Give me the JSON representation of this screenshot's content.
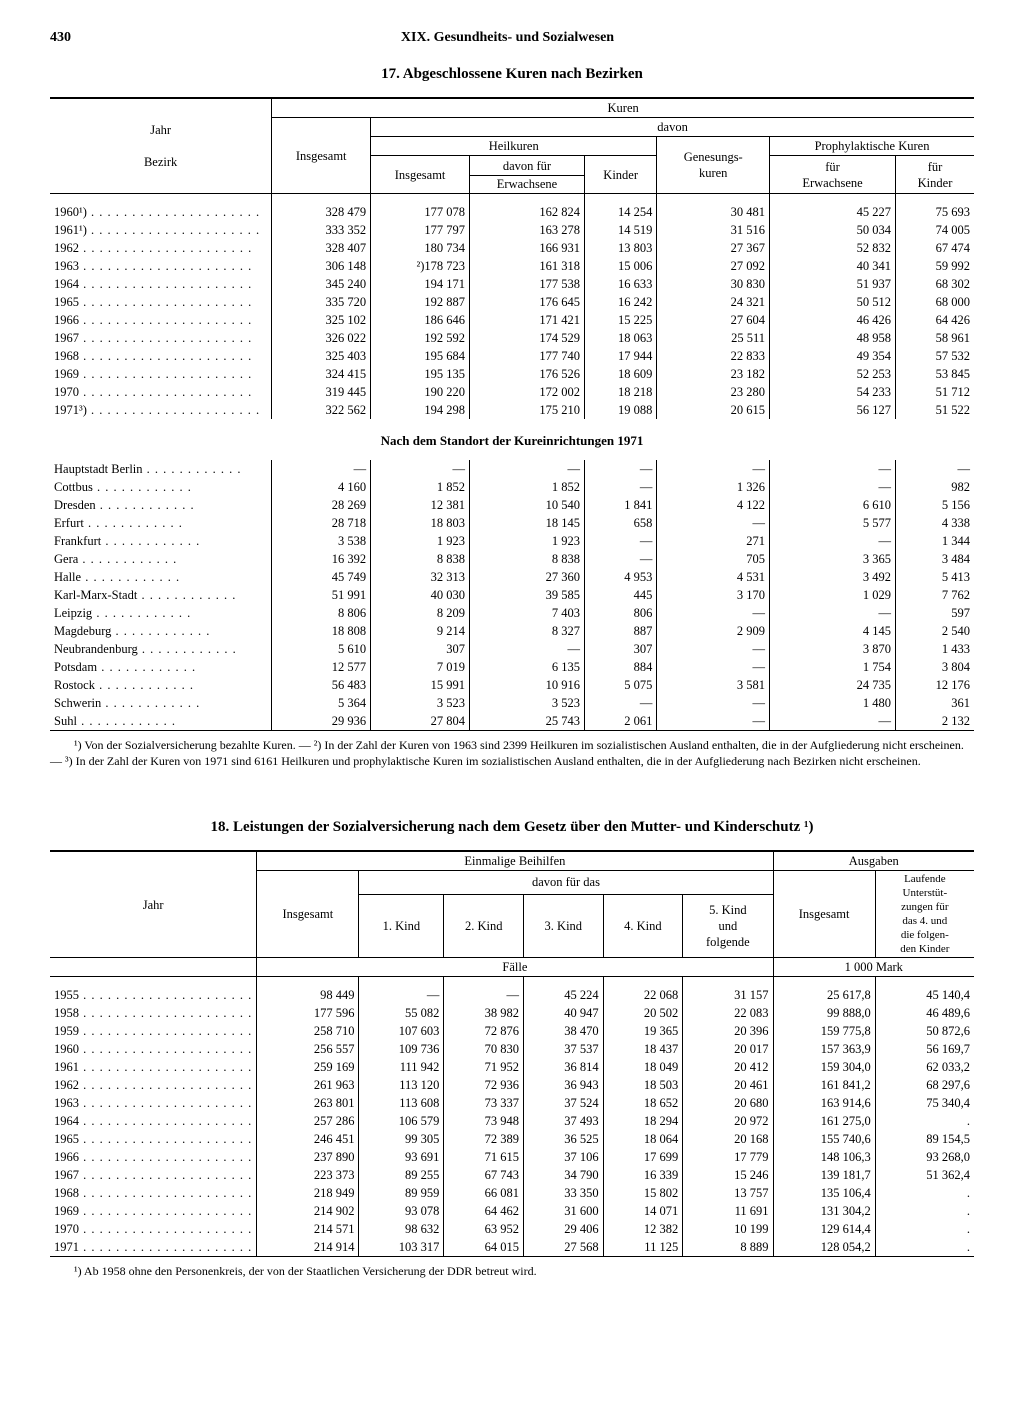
{
  "page_number": "430",
  "chapter": "XIX. Gesundheits- und Sozialwesen",
  "table17": {
    "title": "17. Abgeschlossene Kuren nach Bezirken",
    "head": {
      "kuren": "Kuren",
      "jahr": "Jahr",
      "bezirk": "Bezirk",
      "insgesamt": "Insgesamt",
      "davon": "davon",
      "heilkuren": "Heilkuren",
      "davon_fuer": "davon für",
      "erwachsene": "Erwachsene",
      "kinder": "Kinder",
      "genesungskuren": "Genesungs-\nkuren",
      "proph": "Prophylaktische Kuren",
      "fuer_erw": "für\nErwachsene",
      "fuer_kinder": "für\nKinder"
    },
    "years": [
      {
        "label": "1960¹)",
        "c": [
          "328 479",
          "177 078",
          "162 824",
          "14 254",
          "30 481",
          "45 227",
          "75 693"
        ]
      },
      {
        "label": "1961¹)",
        "c": [
          "333 352",
          "177 797",
          "163 278",
          "14 519",
          "31 516",
          "50 034",
          "74 005"
        ]
      },
      {
        "label": "1962",
        "c": [
          "328 407",
          "180 734",
          "166 931",
          "13 803",
          "27 367",
          "52 832",
          "67 474"
        ]
      },
      {
        "label": "1963",
        "c": [
          "306 148",
          "²)178 723",
          "161 318",
          "15 006",
          "27 092",
          "40 341",
          "59 992"
        ]
      },
      {
        "label": "1964",
        "c": [
          "345 240",
          "194 171",
          "177 538",
          "16 633",
          "30 830",
          "51 937",
          "68 302"
        ]
      },
      {
        "label": "1965",
        "c": [
          "335 720",
          "192 887",
          "176 645",
          "16 242",
          "24 321",
          "50 512",
          "68 000"
        ]
      },
      {
        "label": "1966",
        "c": [
          "325 102",
          "186 646",
          "171 421",
          "15 225",
          "27 604",
          "46 426",
          "64 426"
        ]
      },
      {
        "label": "1967",
        "c": [
          "326 022",
          "192 592",
          "174 529",
          "18 063",
          "25 511",
          "48 958",
          "58 961"
        ]
      },
      {
        "label": "1968",
        "c": [
          "325 403",
          "195 684",
          "177 740",
          "17 944",
          "22 833",
          "49 354",
          "57 532"
        ]
      },
      {
        "label": "1969",
        "c": [
          "324 415",
          "195 135",
          "176 526",
          "18 609",
          "23 182",
          "52 253",
          "53 845"
        ]
      },
      {
        "label": "1970",
        "c": [
          "319 445",
          "190 220",
          "172 002",
          "18 218",
          "23 280",
          "54 233",
          "51 712"
        ]
      },
      {
        "label": "1971³)",
        "c": [
          "322 562",
          "194 298",
          "175 210",
          "19 088",
          "20 615",
          "56 127",
          "51 522"
        ]
      }
    ],
    "subhead": "Nach dem Standort der Kureinrichtungen 1971",
    "districts": [
      {
        "label": "Hauptstadt Berlin",
        "c": [
          "—",
          "—",
          "—",
          "—",
          "—",
          "—",
          "—"
        ]
      },
      {
        "label": "Cottbus",
        "c": [
          "4 160",
          "1 852",
          "1 852",
          "—",
          "1 326",
          "—",
          "982"
        ]
      },
      {
        "label": "Dresden",
        "c": [
          "28 269",
          "12 381",
          "10 540",
          "1 841",
          "4 122",
          "6 610",
          "5 156"
        ]
      },
      {
        "label": "Erfurt",
        "c": [
          "28 718",
          "18 803",
          "18 145",
          "658",
          "—",
          "5 577",
          "4 338"
        ]
      },
      {
        "label": "Frankfurt",
        "c": [
          "3 538",
          "1 923",
          "1 923",
          "—",
          "271",
          "—",
          "1 344"
        ]
      },
      {
        "label": "Gera",
        "c": [
          "16 392",
          "8 838",
          "8 838",
          "—",
          "705",
          "3 365",
          "3 484"
        ]
      },
      {
        "label": "Halle",
        "c": [
          "45 749",
          "32 313",
          "27 360",
          "4 953",
          "4 531",
          "3 492",
          "5 413"
        ]
      },
      {
        "label": "Karl-Marx-Stadt",
        "c": [
          "51 991",
          "40 030",
          "39 585",
          "445",
          "3 170",
          "1 029",
          "7 762"
        ]
      },
      {
        "label": "Leipzig",
        "c": [
          "8 806",
          "8 209",
          "7 403",
          "806",
          "—",
          "—",
          "597"
        ]
      },
      {
        "label": "Magdeburg",
        "c": [
          "18 808",
          "9 214",
          "8 327",
          "887",
          "2 909",
          "4 145",
          "2 540"
        ]
      },
      {
        "label": "Neubrandenburg",
        "c": [
          "5 610",
          "307",
          "—",
          "307",
          "—",
          "3 870",
          "1 433"
        ]
      },
      {
        "label": "Potsdam",
        "c": [
          "12 577",
          "7 019",
          "6 135",
          "884",
          "—",
          "1 754",
          "3 804"
        ]
      },
      {
        "label": "Rostock",
        "c": [
          "56 483",
          "15 991",
          "10 916",
          "5 075",
          "3 581",
          "24 735",
          "12 176"
        ]
      },
      {
        "label": "Schwerin",
        "c": [
          "5 364",
          "3 523",
          "3 523",
          "—",
          "—",
          "1 480",
          "361"
        ]
      },
      {
        "label": "Suhl",
        "c": [
          "29 936",
          "27 804",
          "25 743",
          "2 061",
          "—",
          "—",
          "2 132"
        ]
      }
    ],
    "footnote": "¹) Von der Sozialversicherung bezahlte Kuren. — ²) In der Zahl der Kuren von 1963 sind 2399 Heilkuren im sozialistischen Ausland enthalten, die in der Aufgliederung nicht erscheinen. — ³) In der Zahl der Kuren von 1971 sind 6161 Heilkuren und prophylaktische Kuren im sozialistischen Ausland enthalten, die in der Aufgliederung nach Bezirken nicht erscheinen."
  },
  "table18": {
    "title": "18. Leistungen der Sozialversicherung nach dem Gesetz über den Mutter- und Kinderschutz ¹)",
    "head": {
      "einmalige": "Einmalige Beihilfen",
      "ausgaben": "Ausgaben",
      "davon_fuer_das": "davon für das",
      "jahr": "Jahr",
      "insgesamt": "Insgesamt",
      "kind1": "1. Kind",
      "kind2": "2. Kind",
      "kind3": "3. Kind",
      "kind4": "4. Kind",
      "kind5": "5. Kind\nund\nfolgende",
      "laufende": "Laufende\nUnterstüt-\nzungen für\ndas 4. und\ndie folgen-\nden Kinder",
      "faelle": "Fälle",
      "mark": "1 000 Mark"
    },
    "rows": [
      {
        "label": "1955",
        "c": [
          "98 449",
          "—",
          "—",
          "45 224",
          "22 068",
          "31 157",
          "25 617,8",
          "45 140,4"
        ]
      },
      {
        "label": "1958",
        "c": [
          "177 596",
          "55 082",
          "38 982",
          "40 947",
          "20 502",
          "22 083",
          "99 888,0",
          "46 489,6"
        ]
      },
      {
        "label": "1959",
        "c": [
          "258 710",
          "107 603",
          "72 876",
          "38 470",
          "19 365",
          "20 396",
          "159 775,8",
          "50 872,6"
        ]
      },
      {
        "label": "1960",
        "c": [
          "256 557",
          "109 736",
          "70 830",
          "37 537",
          "18 437",
          "20 017",
          "157 363,9",
          "56 169,7"
        ]
      },
      {
        "label": "1961",
        "c": [
          "259 169",
          "111 942",
          "71 952",
          "36 814",
          "18 049",
          "20 412",
          "159 304,0",
          "62 033,2"
        ]
      },
      {
        "label": "1962",
        "c": [
          "261 963",
          "113 120",
          "72 936",
          "36 943",
          "18 503",
          "20 461",
          "161 841,2",
          "68 297,6"
        ]
      },
      {
        "label": "1963",
        "c": [
          "263 801",
          "113 608",
          "73 337",
          "37 524",
          "18 652",
          "20 680",
          "163 914,6",
          "75 340,4"
        ]
      },
      {
        "label": "1964",
        "c": [
          "257 286",
          "106 579",
          "73 948",
          "37 493",
          "18 294",
          "20 972",
          "161 275,0",
          "."
        ]
      },
      {
        "label": "1965",
        "c": [
          "246 451",
          "99 305",
          "72 389",
          "36 525",
          "18 064",
          "20 168",
          "155 740,6",
          "89 154,5"
        ]
      },
      {
        "label": "1966",
        "c": [
          "237 890",
          "93 691",
          "71 615",
          "37 106",
          "17 699",
          "17 779",
          "148 106,3",
          "93 268,0"
        ]
      },
      {
        "label": "1967",
        "c": [
          "223 373",
          "89 255",
          "67 743",
          "34 790",
          "16 339",
          "15 246",
          "139 181,7",
          "51 362,4"
        ]
      },
      {
        "label": "1968",
        "c": [
          "218 949",
          "89 959",
          "66 081",
          "33 350",
          "15 802",
          "13 757",
          "135 106,4",
          "."
        ]
      },
      {
        "label": "1969",
        "c": [
          "214 902",
          "93 078",
          "64 462",
          "31 600",
          "14 071",
          "11 691",
          "131 304,2",
          "."
        ]
      },
      {
        "label": "1970",
        "c": [
          "214 571",
          "98 632",
          "63 952",
          "29 406",
          "12 382",
          "10 199",
          "129 614,4",
          "."
        ]
      },
      {
        "label": "1971",
        "c": [
          "214 914",
          "103 317",
          "64 015",
          "27 568",
          "11 125",
          "8 889",
          "128 054,2",
          "."
        ]
      }
    ],
    "footnote": "¹) Ab 1958 ohne den Personenkreis, der von der Staatlichen Versicherung der DDR betreut wird."
  }
}
